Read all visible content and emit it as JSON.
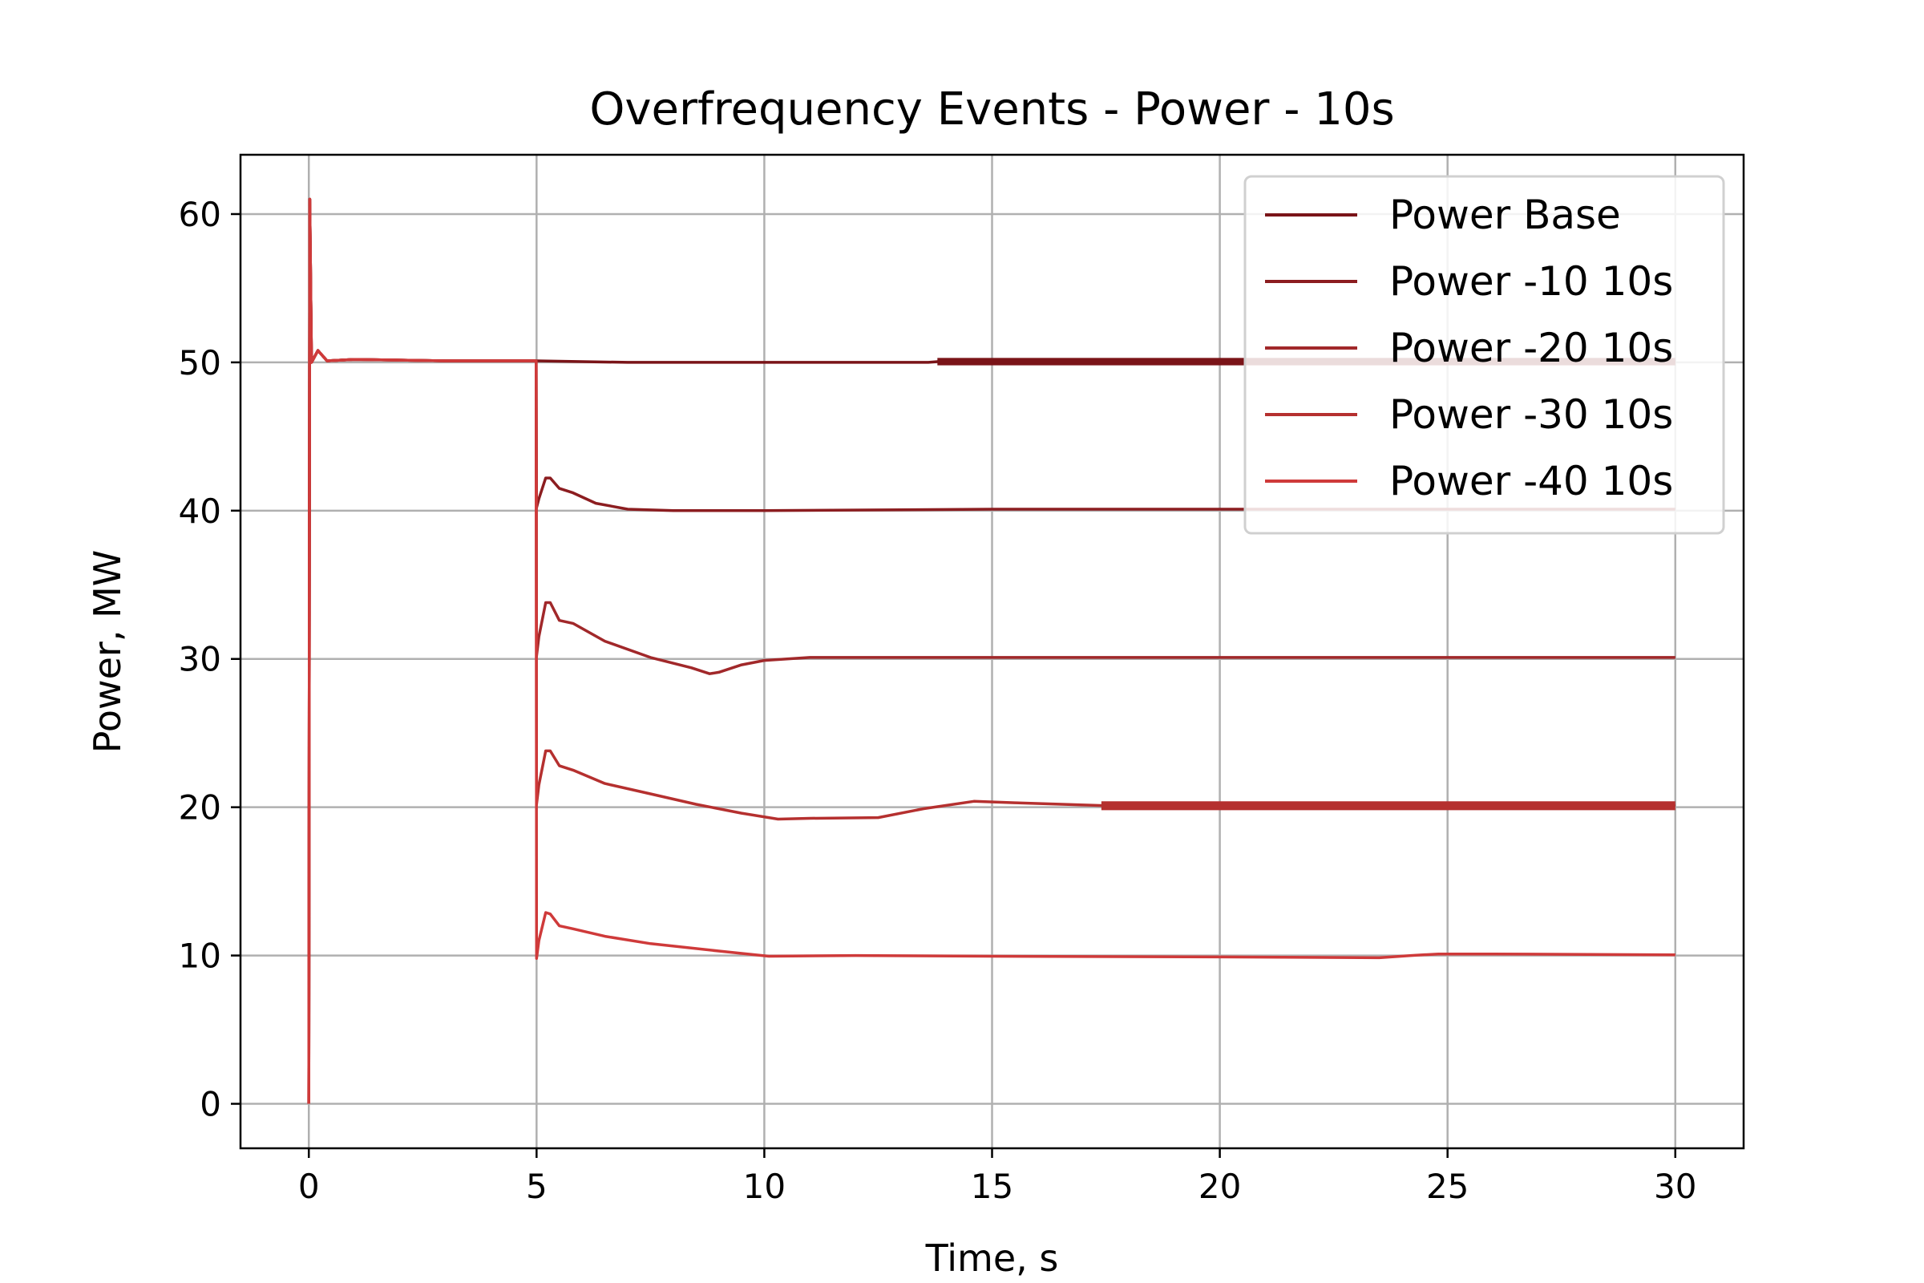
{
  "chart_data": {
    "type": "line",
    "title": "Overfrequency Events - Power - 10s",
    "xlabel": "Time, s",
    "ylabel": "Power, MW",
    "xlim": [
      -1.5,
      31.5
    ],
    "ylim": [
      -3,
      64
    ],
    "xticks": [
      0,
      5,
      10,
      15,
      20,
      25,
      30
    ],
    "yticks": [
      0,
      10,
      20,
      30,
      40,
      50,
      60
    ],
    "grid": true,
    "legend_position": "top-right",
    "series": [
      {
        "name": "Power Base",
        "color": "#7a1418",
        "points": [
          [
            0,
            0
          ],
          [
            0.02,
            61
          ],
          [
            0.06,
            50
          ],
          [
            0.2,
            50.8
          ],
          [
            0.4,
            50.1
          ],
          [
            1,
            50.2
          ],
          [
            3,
            50.1
          ],
          [
            5,
            50.1
          ],
          [
            7,
            50
          ],
          [
            10,
            50
          ],
          [
            13.6,
            50
          ],
          [
            13.8,
            50.05
          ],
          [
            15,
            50.05
          ],
          [
            20,
            50.05
          ],
          [
            25,
            50.05
          ],
          [
            30,
            50.05
          ]
        ],
        "band": [
          13.8,
          30,
          0.25
        ]
      },
      {
        "name": "Power -10 10s",
        "color": "#8c1d20",
        "points": [
          [
            0,
            0
          ],
          [
            0.02,
            61
          ],
          [
            0.06,
            50
          ],
          [
            0.2,
            50.8
          ],
          [
            0.4,
            50.1
          ],
          [
            1,
            50.2
          ],
          [
            3,
            50.1
          ],
          [
            4.99,
            50.1
          ],
          [
            5.0,
            40.2
          ],
          [
            5.05,
            40.8
          ],
          [
            5.2,
            42.2
          ],
          [
            5.3,
            42.2
          ],
          [
            5.5,
            41.5
          ],
          [
            5.8,
            41.2
          ],
          [
            6.3,
            40.5
          ],
          [
            7,
            40.1
          ],
          [
            8,
            40
          ],
          [
            10,
            40
          ],
          [
            15,
            40.1
          ],
          [
            20,
            40.1
          ],
          [
            25,
            40.1
          ],
          [
            30,
            40.1
          ]
        ]
      },
      {
        "name": "Power -20 10s",
        "color": "#a1282a",
        "points": [
          [
            0,
            0
          ],
          [
            0.02,
            61
          ],
          [
            0.06,
            50
          ],
          [
            0.2,
            50.8
          ],
          [
            0.4,
            50.1
          ],
          [
            1,
            50.2
          ],
          [
            3,
            50.1
          ],
          [
            4.99,
            50.1
          ],
          [
            5.0,
            30.2
          ],
          [
            5.05,
            31.5
          ],
          [
            5.2,
            33.8
          ],
          [
            5.3,
            33.8
          ],
          [
            5.5,
            32.6
          ],
          [
            5.8,
            32.4
          ],
          [
            6.5,
            31.2
          ],
          [
            7.5,
            30.1
          ],
          [
            8.4,
            29.4
          ],
          [
            8.8,
            29.0
          ],
          [
            9.0,
            29.1
          ],
          [
            9.5,
            29.6
          ],
          [
            10,
            29.9
          ],
          [
            11,
            30.1
          ],
          [
            15,
            30.1
          ],
          [
            20,
            30.1
          ],
          [
            25,
            30.1
          ],
          [
            30,
            30.1
          ]
        ]
      },
      {
        "name": "Power -30 10s",
        "color": "#b5302f",
        "points": [
          [
            0,
            0
          ],
          [
            0.02,
            61
          ],
          [
            0.06,
            50
          ],
          [
            0.2,
            50.8
          ],
          [
            0.4,
            50.1
          ],
          [
            1,
            50.2
          ],
          [
            3,
            50.1
          ],
          [
            4.99,
            50.1
          ],
          [
            5.0,
            20.2
          ],
          [
            5.05,
            21.5
          ],
          [
            5.2,
            23.8
          ],
          [
            5.3,
            23.8
          ],
          [
            5.5,
            22.8
          ],
          [
            5.8,
            22.5
          ],
          [
            6.5,
            21.6
          ],
          [
            7.5,
            20.9
          ],
          [
            8.5,
            20.2
          ],
          [
            9.5,
            19.6
          ],
          [
            10.3,
            19.2
          ],
          [
            11,
            19.25
          ],
          [
            12.5,
            19.3
          ],
          [
            13.5,
            19.9
          ],
          [
            14.6,
            20.4
          ],
          [
            15.5,
            20.3
          ],
          [
            17.5,
            20.1
          ],
          [
            20,
            20.1
          ],
          [
            25,
            20.1
          ],
          [
            30,
            20.1
          ]
        ],
        "band": [
          17.4,
          30,
          0.3
        ]
      },
      {
        "name": "Power -40 10s",
        "color": "#cf3a3a",
        "points": [
          [
            0,
            0
          ],
          [
            0.02,
            61
          ],
          [
            0.06,
            50
          ],
          [
            0.2,
            50.8
          ],
          [
            0.4,
            50.1
          ],
          [
            1,
            50.2
          ],
          [
            3,
            50.1
          ],
          [
            4.99,
            50.1
          ],
          [
            5.0,
            9.8
          ],
          [
            5.05,
            11.0
          ],
          [
            5.2,
            12.9
          ],
          [
            5.3,
            12.8
          ],
          [
            5.5,
            12.0
          ],
          [
            5.8,
            11.8
          ],
          [
            6.5,
            11.3
          ],
          [
            7.5,
            10.8
          ],
          [
            9,
            10.3
          ],
          [
            10.1,
            9.95
          ],
          [
            12,
            10.0
          ],
          [
            15,
            9.95
          ],
          [
            20,
            9.9
          ],
          [
            23.5,
            9.85
          ],
          [
            24.2,
            10.0
          ],
          [
            24.8,
            10.1
          ],
          [
            26,
            10.1
          ],
          [
            30,
            10.05
          ]
        ]
      }
    ]
  }
}
